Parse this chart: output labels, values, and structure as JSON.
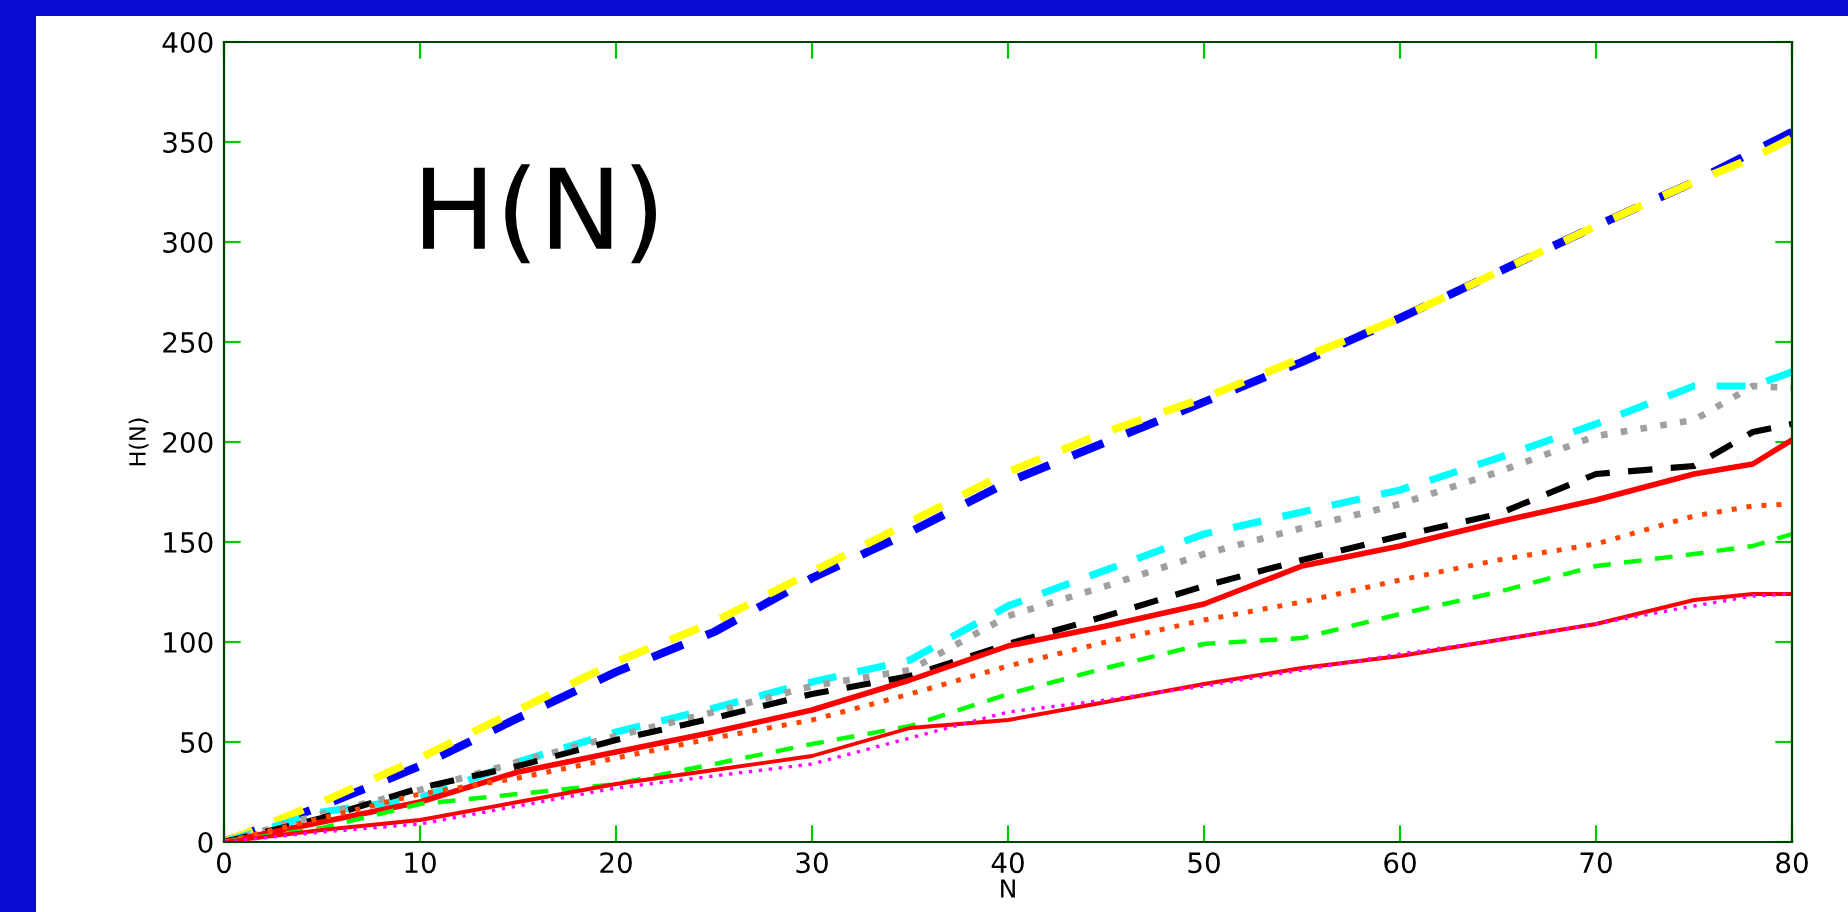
{
  "chart_data": {
    "type": "line",
    "xlabel": "N",
    "ylabel": "H(N)",
    "annotations": [
      "H(N)"
    ],
    "x": [
      0,
      5,
      10,
      15,
      20,
      25,
      30,
      35,
      40,
      45,
      50,
      55,
      60,
      65,
      70,
      75,
      78,
      80
    ],
    "series": [
      {
        "color": "#0000ff",
        "line_style": "dashed",
        "values": [
          0,
          18,
          38,
          62,
          85,
          105,
          132,
          155,
          180,
          200,
          220,
          240,
          262,
          285,
          308,
          330,
          345,
          355
        ]
      },
      {
        "color": "#ffff00",
        "line_style": "dashed",
        "values": [
          0,
          20,
          42,
          66,
          90,
          110,
          135,
          160,
          185,
          205,
          222,
          242,
          262,
          285,
          308,
          330,
          342,
          352
        ]
      },
      {
        "color": "#00ffff",
        "line_style": "dashed",
        "values": [
          0,
          15,
          22,
          40,
          55,
          67,
          80,
          91,
          118,
          136,
          154,
          165,
          176,
          192,
          209,
          228,
          228,
          235
        ]
      },
      {
        "color": "#a0a0a0",
        "line_style": "dotted",
        "values": [
          0,
          14,
          26,
          40,
          53,
          65,
          78,
          86,
          113,
          128,
          144,
          157,
          169,
          185,
          203,
          211,
          228,
          227
        ]
      },
      {
        "color": "#000000",
        "line_style": "dashed",
        "values": [
          0,
          12,
          27,
          38,
          51,
          62,
          74,
          83,
          99,
          113,
          128,
          141,
          153,
          164,
          184,
          188,
          205,
          209
        ]
      },
      {
        "color": "#ff0000",
        "line_style": "solid",
        "values": [
          0,
          10,
          20,
          35,
          45,
          55,
          66,
          81,
          98,
          108,
          119,
          138,
          148,
          160,
          171,
          184,
          189,
          201
        ]
      },
      {
        "color": "#ff4500",
        "line_style": "dotted",
        "values": [
          0,
          12,
          24,
          32,
          42,
          52,
          61,
          74,
          88,
          100,
          111,
          120,
          131,
          141,
          149,
          163,
          168,
          169
        ]
      },
      {
        "color": "#00ff00",
        "line_style": "dashed",
        "values": [
          0,
          7,
          19,
          24,
          29,
          39,
          49,
          58,
          74,
          87,
          99,
          102,
          114,
          125,
          138,
          144,
          148,
          154
        ]
      },
      {
        "color": "#ff0000",
        "line_style": "solid",
        "values": [
          0,
          6,
          11,
          20,
          29,
          36,
          43,
          57,
          61,
          70,
          79,
          87,
          93,
          101,
          109,
          121,
          124,
          124
        ]
      },
      {
        "color": "#ff00ff",
        "line_style": "dotted",
        "values": [
          0,
          5,
          9,
          18,
          27,
          33,
          39,
          52,
          65,
          71,
          78,
          86,
          94,
          101,
          109,
          118,
          123,
          124
        ]
      }
    ],
    "xlim": [
      0,
      80
    ],
    "ylim": [
      0,
      400
    ],
    "xticks": [
      0,
      10,
      20,
      30,
      40,
      50,
      60,
      70,
      80
    ],
    "yticks": [
      0,
      50,
      100,
      150,
      200,
      250,
      300,
      350,
      400
    ],
    "grid": false,
    "legend": false
  }
}
